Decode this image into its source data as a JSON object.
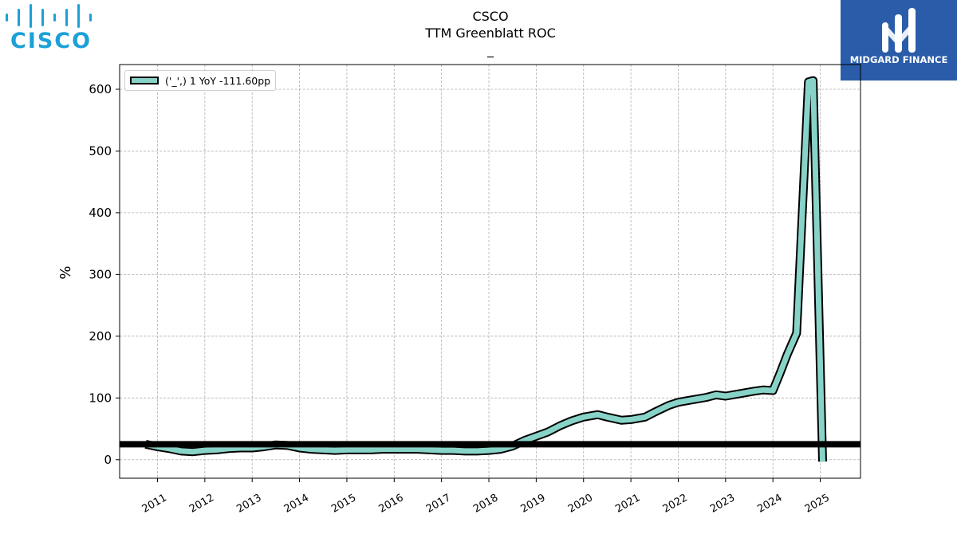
{
  "logos": {
    "left_text": "CISCO",
    "right_text": "MIDGARD FINANCE",
    "left_color": "#1ba0d7",
    "right_bg": "#2a5caa"
  },
  "chart_data": {
    "type": "area",
    "title": "CSCO",
    "subtitle": "TTM Greenblatt ROC",
    "subtitle2": "_",
    "ylabel": "%",
    "xlabel": "",
    "ylim": [
      -30,
      640
    ],
    "xlim": [
      2010.2,
      2025.85
    ],
    "yticks": [
      0,
      100,
      200,
      300,
      400,
      500,
      600
    ],
    "xticks": [
      "2011",
      "2012",
      "2013",
      "2014",
      "2015",
      "2016",
      "2017",
      "2018",
      "2019",
      "2020",
      "2021",
      "2022",
      "2023",
      "2024",
      "2025"
    ],
    "grid": true,
    "legend_position": "top-left",
    "reference_line": 25,
    "series": [
      {
        "name": "('_',) 1 YoY -111.60pp",
        "color": "#88d3c8",
        "x": [
          2010.75,
          2011.0,
          2011.25,
          2011.5,
          2011.75,
          2012.0,
          2012.25,
          2012.5,
          2012.75,
          2013.0,
          2013.25,
          2013.5,
          2013.75,
          2014.0,
          2014.25,
          2014.5,
          2014.75,
          2015.0,
          2015.25,
          2015.5,
          2015.75,
          2016.0,
          2016.25,
          2016.5,
          2016.75,
          2017.0,
          2017.25,
          2017.5,
          2017.75,
          2018.0,
          2018.25,
          2018.5,
          2018.75,
          2019.0,
          2019.25,
          2019.5,
          2019.75,
          2020.0,
          2020.3,
          2020.5,
          2020.8,
          2021.0,
          2021.3,
          2021.5,
          2021.8,
          2022.0,
          2022.3,
          2022.6,
          2022.8,
          2023.0,
          2023.3,
          2023.6,
          2023.8,
          2024.0,
          2024.15,
          2024.3,
          2024.5,
          2024.75,
          2024.85,
          2025.05
        ],
        "values": [
          25,
          21,
          18,
          14,
          13,
          15,
          16,
          18,
          19,
          19,
          21,
          24,
          23,
          19,
          17,
          16,
          15,
          16,
          16,
          16,
          17,
          17,
          17,
          17,
          16,
          15,
          15,
          14,
          14,
          15,
          17,
          22,
          31,
          38,
          45,
          55,
          63,
          69,
          73,
          69,
          64,
          65,
          69,
          77,
          88,
          93,
          97,
          101,
          105,
          103,
          107,
          111,
          113,
          112,
          140,
          170,
          205,
          612,
          614,
          -3
        ]
      }
    ]
  }
}
